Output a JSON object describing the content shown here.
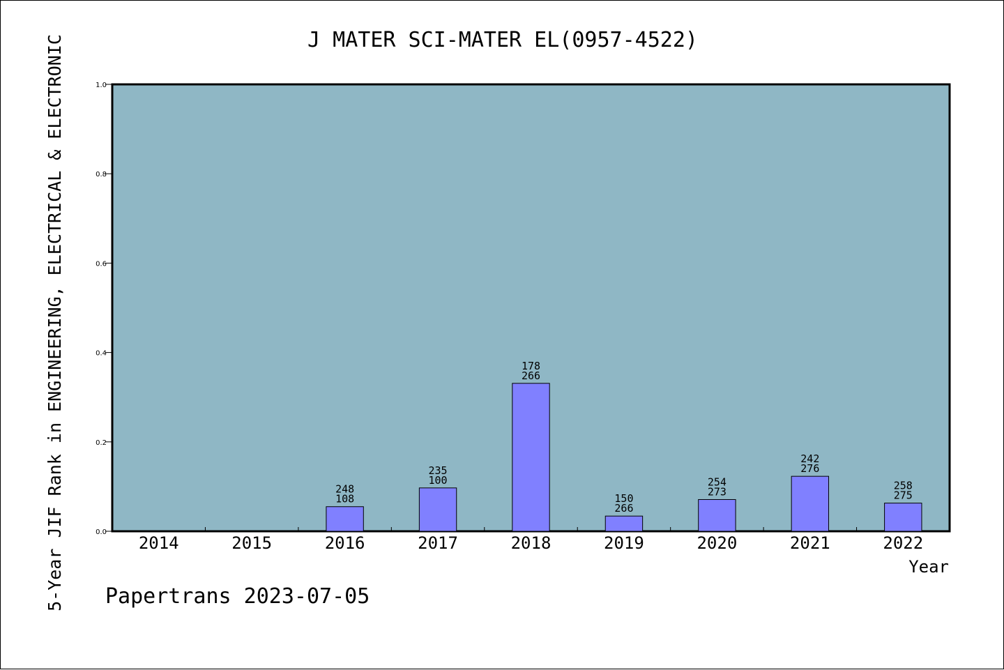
{
  "chart_data": {
    "type": "bar",
    "title": "J MATER SCI-MATER EL(0957-4522)",
    "xlabel": "Year",
    "ylabel": "5-Year JIF Rank in ENGINEERING, ELECTRICAL & ELECTRONIC",
    "ylim": [
      0.0,
      1.0
    ],
    "yticks": [
      "0.0",
      "0.2",
      "0.4",
      "0.6",
      "0.8",
      "1.0"
    ],
    "categories": [
      "2014",
      "2015",
      "2016",
      "2017",
      "2018",
      "2019",
      "2020",
      "2021",
      "2022"
    ],
    "values": [
      null,
      null,
      0.055,
      0.097,
      0.331,
      0.034,
      0.071,
      0.123,
      0.063
    ],
    "labels": [
      null,
      null,
      {
        "rank": "248",
        "total": "108"
      },
      {
        "rank": "235",
        "total": "100"
      },
      {
        "rank": "178",
        "total": "266"
      },
      {
        "rank": "150",
        "total": "266"
      },
      {
        "rank": "254",
        "total": "273"
      },
      {
        "rank": "242",
        "total": "276"
      },
      {
        "rank": "258",
        "total": "275"
      }
    ],
    "grid": false,
    "colors": {
      "plot_background": "#8fb7c5",
      "bar_fill": "#8080ff",
      "bar_stroke": "#000000"
    }
  },
  "footer": {
    "text": "Papertrans 2023-07-05"
  }
}
